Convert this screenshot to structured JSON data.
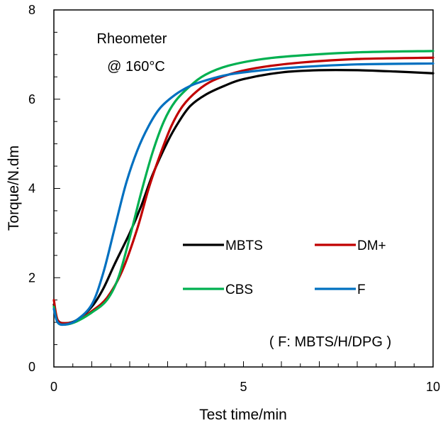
{
  "chart_data": {
    "type": "line",
    "xlabel": "Test time/min",
    "ylabel": "Torque/N.dm",
    "xlim": [
      0,
      10
    ],
    "ylim": [
      0,
      8
    ],
    "x_ticks": [
      "0",
      "5",
      "10"
    ],
    "y_ticks": [
      "0",
      "2",
      "4",
      "6",
      "8"
    ],
    "grid": false,
    "legend_position": "center-right",
    "annotation_title_line1": "Rheometer",
    "annotation_title_line2": "@ 160°C",
    "annotation_note": "( F: MBTS/H/DPG )",
    "series": [
      {
        "name": "MBTS",
        "color": "#000000",
        "points": [
          [
            0,
            1.4
          ],
          [
            0.1,
            1.05
          ],
          [
            0.3,
            0.98
          ],
          [
            0.6,
            1.05
          ],
          [
            1.0,
            1.35
          ],
          [
            1.3,
            1.75
          ],
          [
            1.6,
            2.3
          ],
          [
            2.0,
            3.0
          ],
          [
            2.3,
            3.6
          ],
          [
            2.6,
            4.3
          ],
          [
            3.0,
            5.05
          ],
          [
            3.3,
            5.5
          ],
          [
            3.6,
            5.85
          ],
          [
            4.0,
            6.1
          ],
          [
            4.5,
            6.3
          ],
          [
            5.0,
            6.45
          ],
          [
            6.0,
            6.6
          ],
          [
            7.0,
            6.65
          ],
          [
            8.0,
            6.65
          ],
          [
            9.0,
            6.62
          ],
          [
            10,
            6.58
          ]
        ]
      },
      {
        "name": "DM+",
        "color": "#C00000",
        "points": [
          [
            0,
            1.5
          ],
          [
            0.1,
            1.05
          ],
          [
            0.3,
            0.98
          ],
          [
            0.6,
            1.03
          ],
          [
            1.0,
            1.25
          ],
          [
            1.4,
            1.55
          ],
          [
            1.8,
            2.15
          ],
          [
            2.2,
            3.1
          ],
          [
            2.5,
            4.0
          ],
          [
            2.8,
            4.75
          ],
          [
            3.1,
            5.4
          ],
          [
            3.4,
            5.85
          ],
          [
            3.8,
            6.2
          ],
          [
            4.2,
            6.42
          ],
          [
            4.8,
            6.6
          ],
          [
            5.5,
            6.72
          ],
          [
            6.5,
            6.82
          ],
          [
            8.0,
            6.9
          ],
          [
            10,
            6.93
          ]
        ]
      },
      {
        "name": "CBS",
        "color": "#00B050",
        "points": [
          [
            0,
            1.35
          ],
          [
            0.1,
            1.0
          ],
          [
            0.3,
            0.95
          ],
          [
            0.6,
            1.02
          ],
          [
            1.0,
            1.22
          ],
          [
            1.4,
            1.5
          ],
          [
            1.7,
            2.0
          ],
          [
            2.0,
            2.9
          ],
          [
            2.3,
            3.9
          ],
          [
            2.6,
            4.8
          ],
          [
            2.9,
            5.5
          ],
          [
            3.2,
            5.95
          ],
          [
            3.6,
            6.3
          ],
          [
            4.0,
            6.55
          ],
          [
            4.6,
            6.75
          ],
          [
            5.5,
            6.9
          ],
          [
            6.5,
            6.98
          ],
          [
            8.0,
            7.05
          ],
          [
            10,
            7.08
          ]
        ]
      },
      {
        "name": "F",
        "color": "#0070C0",
        "points": [
          [
            0,
            1.3
          ],
          [
            0.1,
            1.0
          ],
          [
            0.3,
            0.95
          ],
          [
            0.6,
            1.05
          ],
          [
            1.0,
            1.4
          ],
          [
            1.3,
            2.1
          ],
          [
            1.6,
            3.1
          ],
          [
            1.9,
            4.1
          ],
          [
            2.2,
            4.85
          ],
          [
            2.5,
            5.4
          ],
          [
            2.8,
            5.8
          ],
          [
            3.2,
            6.1
          ],
          [
            3.6,
            6.3
          ],
          [
            4.0,
            6.42
          ],
          [
            4.6,
            6.55
          ],
          [
            5.5,
            6.65
          ],
          [
            6.5,
            6.72
          ],
          [
            8.0,
            6.78
          ],
          [
            10,
            6.8
          ]
        ]
      }
    ]
  }
}
